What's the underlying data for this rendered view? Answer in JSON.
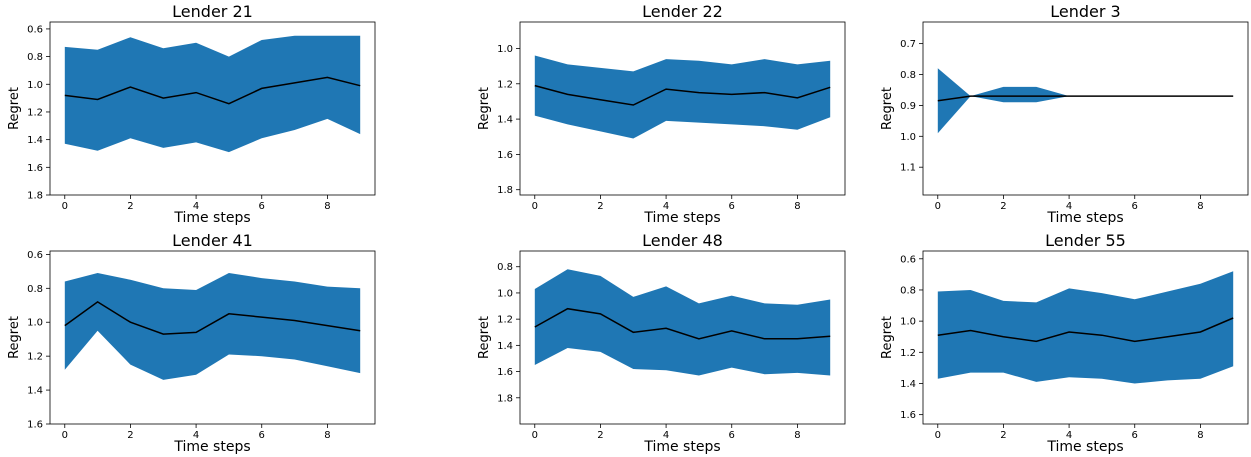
{
  "chart_data": [
    {
      "type": "line",
      "title": "Lender 21",
      "xlabel": "Time steps",
      "ylabel": "Regret",
      "y_inverted": true,
      "xlim": [
        -0.45,
        9.45
      ],
      "ylim": [
        1.8,
        0.55
      ],
      "xticks": [
        0,
        2,
        4,
        6,
        8
      ],
      "yticks": [
        0.6,
        0.8,
        1.0,
        1.2,
        1.4,
        1.6,
        1.8
      ],
      "ytick_labels": [
        "0.6",
        "0.8",
        "1.0",
        "1.2",
        "1.4",
        "1.6",
        "1.8"
      ],
      "x": [
        0,
        1,
        2,
        3,
        4,
        5,
        6,
        7,
        8,
        9
      ],
      "mean": [
        1.08,
        1.11,
        1.02,
        1.1,
        1.06,
        1.14,
        1.03,
        0.99,
        0.95,
        1.01
      ],
      "band_low": [
        0.73,
        0.75,
        0.66,
        0.74,
        0.7,
        0.8,
        0.68,
        0.65,
        0.65,
        0.65
      ],
      "band_high": [
        1.43,
        1.48,
        1.39,
        1.46,
        1.42,
        1.49,
        1.39,
        1.33,
        1.25,
        1.36
      ],
      "band_color": "#1f77b4",
      "line_color": "#000000"
    },
    {
      "type": "line",
      "title": "Lender 22",
      "xlabel": "Time steps",
      "ylabel": "Regret",
      "y_inverted": true,
      "xlim": [
        -0.45,
        9.45
      ],
      "ylim": [
        1.83,
        0.85
      ],
      "xticks": [
        0,
        2,
        4,
        6,
        8
      ],
      "yticks": [
        1.0,
        1.2,
        1.4,
        1.6,
        1.8
      ],
      "ytick_labels": [
        "1.0",
        "1.2",
        "1.4",
        "1.6",
        "1.8"
      ],
      "x": [
        0,
        1,
        2,
        3,
        4,
        5,
        6,
        7,
        8,
        9
      ],
      "mean": [
        1.21,
        1.26,
        1.29,
        1.32,
        1.23,
        1.25,
        1.26,
        1.25,
        1.28,
        1.22
      ],
      "band_low": [
        1.04,
        1.09,
        1.11,
        1.13,
        1.06,
        1.07,
        1.09,
        1.06,
        1.09,
        1.07
      ],
      "band_high": [
        1.38,
        1.43,
        1.47,
        1.51,
        1.41,
        1.42,
        1.43,
        1.44,
        1.46,
        1.39
      ],
      "band_color": "#1f77b4",
      "line_color": "#000000"
    },
    {
      "type": "line",
      "title": "Lender 3",
      "xlabel": "Time steps",
      "ylabel": "Regret",
      "y_inverted": true,
      "xlim": [
        -0.45,
        9.45
      ],
      "ylim": [
        1.19,
        0.63
      ],
      "xticks": [
        0,
        2,
        4,
        6,
        8
      ],
      "yticks": [
        0.7,
        0.8,
        0.9,
        1.0,
        1.1
      ],
      "ytick_labels": [
        "0.7",
        "0.8",
        "0.9",
        "1.0",
        "1.1"
      ],
      "x": [
        0,
        1,
        2,
        3,
        4,
        5,
        6,
        7,
        8,
        9
      ],
      "mean": [
        0.885,
        0.87,
        0.87,
        0.87,
        0.87,
        0.87,
        0.87,
        0.87,
        0.87,
        0.87
      ],
      "band_low": [
        0.78,
        0.87,
        0.84,
        0.84,
        0.87,
        0.87,
        0.87,
        0.87,
        0.87,
        0.87
      ],
      "band_high": [
        0.99,
        0.87,
        0.89,
        0.89,
        0.87,
        0.87,
        0.87,
        0.87,
        0.87,
        0.87
      ],
      "band_color": "#1f77b4",
      "line_color": "#000000"
    },
    {
      "type": "line",
      "title": "Lender 41",
      "xlabel": "Time steps",
      "ylabel": "Regret",
      "y_inverted": true,
      "xlim": [
        -0.45,
        9.45
      ],
      "ylim": [
        1.6,
        0.58
      ],
      "xticks": [
        0,
        2,
        4,
        6,
        8
      ],
      "yticks": [
        0.6,
        0.8,
        1.0,
        1.2,
        1.4,
        1.6
      ],
      "ytick_labels": [
        "0.6",
        "0.8",
        "1.0",
        "1.2",
        "1.4",
        "1.6"
      ],
      "x": [
        0,
        1,
        2,
        3,
        4,
        5,
        6,
        7,
        8,
        9
      ],
      "mean": [
        1.02,
        0.88,
        1.0,
        1.07,
        1.06,
        0.95,
        0.97,
        0.99,
        1.02,
        1.05
      ],
      "band_low": [
        0.76,
        0.71,
        0.75,
        0.8,
        0.81,
        0.71,
        0.74,
        0.76,
        0.79,
        0.8
      ],
      "band_high": [
        1.28,
        1.05,
        1.25,
        1.34,
        1.31,
        1.19,
        1.2,
        1.22,
        1.26,
        1.3
      ],
      "band_color": "#1f77b4",
      "line_color": "#000000"
    },
    {
      "type": "line",
      "title": "Lender 48",
      "xlabel": "Time steps",
      "ylabel": "Regret",
      "y_inverted": true,
      "xlim": [
        -0.45,
        9.45
      ],
      "ylim": [
        2.0,
        0.68
      ],
      "xticks": [
        0,
        2,
        4,
        6,
        8
      ],
      "yticks": [
        0.8,
        1.0,
        1.2,
        1.4,
        1.6,
        1.8
      ],
      "ytick_labels": [
        "0.8",
        "1.0",
        "1.2",
        "1.4",
        "1.6",
        "1.8"
      ],
      "x": [
        0,
        1,
        2,
        3,
        4,
        5,
        6,
        7,
        8,
        9
      ],
      "mean": [
        1.26,
        1.12,
        1.16,
        1.3,
        1.27,
        1.35,
        1.29,
        1.35,
        1.35,
        1.33
      ],
      "band_low": [
        0.97,
        0.82,
        0.87,
        1.03,
        0.95,
        1.08,
        1.02,
        1.08,
        1.09,
        1.05
      ],
      "band_high": [
        1.55,
        1.42,
        1.45,
        1.58,
        1.59,
        1.63,
        1.57,
        1.62,
        1.61,
        1.63
      ],
      "band_color": "#1f77b4",
      "line_color": "#000000"
    },
    {
      "type": "line",
      "title": "Lender 55",
      "xlabel": "Time steps",
      "ylabel": "Regret",
      "y_inverted": true,
      "xlim": [
        -0.45,
        9.45
      ],
      "ylim": [
        1.66,
        0.55
      ],
      "xticks": [
        0,
        2,
        4,
        6,
        8
      ],
      "yticks": [
        0.6,
        0.8,
        1.0,
        1.2,
        1.4,
        1.6
      ],
      "ytick_labels": [
        "0.6",
        "0.8",
        "1.0",
        "1.2",
        "1.4",
        "1.6"
      ],
      "x": [
        0,
        1,
        2,
        3,
        4,
        5,
        6,
        7,
        8,
        9
      ],
      "mean": [
        1.09,
        1.06,
        1.1,
        1.13,
        1.07,
        1.09,
        1.13,
        1.1,
        1.07,
        0.98
      ],
      "band_low": [
        0.81,
        0.8,
        0.87,
        0.88,
        0.79,
        0.82,
        0.86,
        0.81,
        0.76,
        0.68
      ],
      "band_high": [
        1.37,
        1.33,
        1.33,
        1.39,
        1.36,
        1.37,
        1.4,
        1.38,
        1.37,
        1.29
      ],
      "band_color": "#1f77b4",
      "line_color": "#000000"
    }
  ]
}
